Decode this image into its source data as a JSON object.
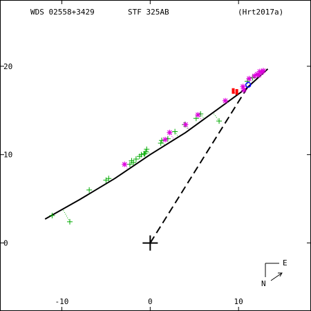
{
  "header": {
    "wds": "WDS 02558+3429",
    "discoverer": "STF 325AB",
    "reference": "(Hrt2017a)"
  },
  "compass": {
    "north": "N",
    "east": "E"
  },
  "chart_data": {
    "type": "scatter",
    "xlim": [
      -17,
      18.2
    ],
    "ylim": [
      -7.7,
      27.5
    ],
    "x_axis_reversed": false,
    "x_ticks": [
      -10,
      0,
      10
    ],
    "y_ticks": [
      0,
      10,
      20
    ],
    "x_tick_labels": [
      "-10",
      "0",
      "10"
    ],
    "y_tick_labels": [
      "0",
      "10",
      "20"
    ],
    "grid": false,
    "origin": [
      0,
      0
    ],
    "orbit": [
      [
        -11.9,
        2.7
      ],
      [
        -8.0,
        4.9
      ],
      [
        -4.0,
        7.3
      ],
      [
        0.0,
        10.0
      ],
      [
        4.0,
        12.5
      ],
      [
        8.0,
        15.4
      ],
      [
        11.0,
        17.6
      ],
      [
        13.3,
        19.7
      ]
    ],
    "periastron_line": [
      [
        0,
        0
      ],
      [
        11.0,
        17.6
      ]
    ],
    "series": [
      {
        "marker": "plus",
        "color": "#00aa00",
        "points": [
          [
            -11.1,
            3.1
          ],
          [
            -9.1,
            2.4
          ],
          [
            -6.9,
            6.0
          ],
          [
            -4.7,
            7.3
          ],
          [
            -5.0,
            7.1
          ],
          [
            -2.3,
            8.9
          ],
          [
            -2.1,
            9.3
          ],
          [
            -1.9,
            9.1
          ],
          [
            -1.6,
            9.5
          ],
          [
            -1.2,
            9.8
          ],
          [
            -1.0,
            10.0
          ],
          [
            -0.7,
            10.1
          ],
          [
            -0.5,
            10.3
          ],
          [
            -0.4,
            10.6
          ],
          [
            -0.6,
            10.1
          ],
          [
            1.2,
            11.3
          ],
          [
            1.3,
            11.6
          ],
          [
            2.0,
            11.8
          ],
          [
            2.8,
            12.6
          ],
          [
            3.9,
            13.4
          ],
          [
            5.2,
            14.1
          ],
          [
            5.7,
            14.6
          ],
          [
            7.8,
            13.8
          ],
          [
            11.0,
            18.3
          ],
          [
            11.6,
            18.7
          ]
        ]
      },
      {
        "marker": "asterisk",
        "color": "#dd00dd",
        "points": [
          [
            -2.9,
            8.9
          ],
          [
            1.7,
            11.7
          ],
          [
            2.2,
            12.5
          ],
          [
            4.0,
            13.4
          ],
          [
            5.4,
            14.5
          ],
          [
            8.5,
            16.1
          ],
          [
            10.5,
            17.7
          ],
          [
            10.6,
            17.3
          ],
          [
            11.2,
            18.6
          ],
          [
            11.8,
            18.9
          ],
          [
            12.1,
            19.1
          ],
          [
            12.4,
            19.4
          ],
          [
            12.6,
            19.3
          ],
          [
            12.8,
            19.5
          ],
          [
            12.3,
            19.0
          ]
        ]
      },
      {
        "marker": "bar",
        "color": "#ff0000",
        "points": [
          [
            9.4,
            17.2
          ],
          [
            9.8,
            17.1
          ]
        ]
      },
      {
        "marker": "circle",
        "color": "#0000ff",
        "points": [
          [
            11.1,
            17.9
          ]
        ]
      }
    ]
  }
}
